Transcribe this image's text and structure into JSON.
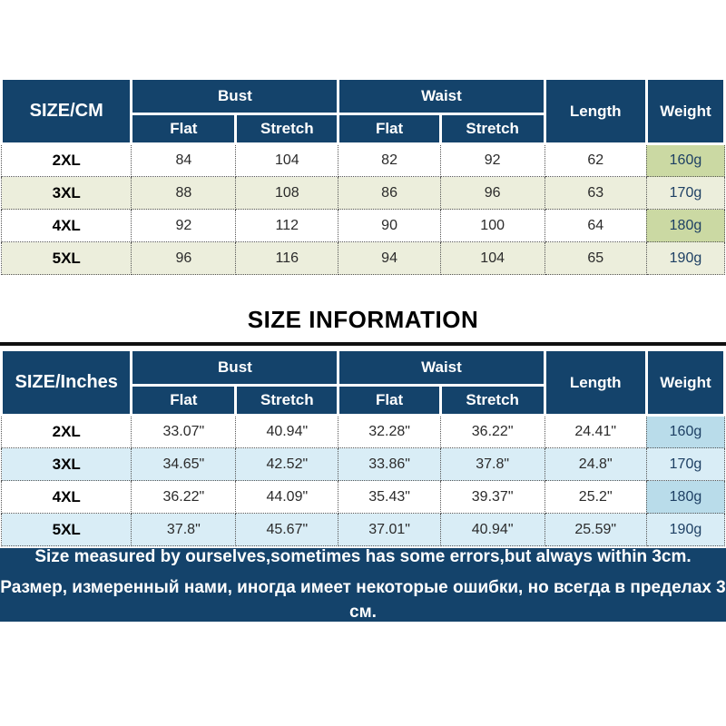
{
  "heading": "SIZE INFORMATION",
  "footer": {
    "line1": "Size measured by ourselves,sometimes has some errors,but always within 3cm.",
    "line2": "Размер, измеренный нами, иногда имеет некоторые ошибки, но всегда в пределах 3 см."
  },
  "colors": {
    "header-bg": "#14436b",
    "footer-bg": "#14436b",
    "cm-alt-row": "#eceedc",
    "cm-weight": "#cbd9a3",
    "in-alt-row": "#d9edf6",
    "in-weight": "#b9dcea",
    "divider": "#101010"
  },
  "chart_data": [
    {
      "type": "table",
      "title": "Size chart in centimeters",
      "corner_label": "SIZE/CM",
      "column_groups": [
        {
          "label": "Bust",
          "span": 2
        },
        {
          "label": "Waist",
          "span": 2
        }
      ],
      "sub_columns": [
        "Flat",
        "Stretch",
        "Flat",
        "Stretch"
      ],
      "single_columns": [
        "Length",
        "Weight"
      ],
      "rows": [
        [
          "2XL",
          "84",
          "104",
          "82",
          "92",
          "62",
          "160g"
        ],
        [
          "3XL",
          "88",
          "108",
          "86",
          "96",
          "63",
          "170g"
        ],
        [
          "4XL",
          "92",
          "112",
          "90",
          "100",
          "64",
          "180g"
        ],
        [
          "5XL",
          "96",
          "116",
          "94",
          "104",
          "65",
          "190g"
        ]
      ]
    },
    {
      "type": "table",
      "title": "Size chart in inches",
      "corner_label": "SIZE/Inches",
      "column_groups": [
        {
          "label": "Bust",
          "span": 2
        },
        {
          "label": "Waist",
          "span": 2
        }
      ],
      "sub_columns": [
        "Flat",
        "Stretch",
        "Flat",
        "Stretch"
      ],
      "single_columns": [
        "Length",
        "Weight"
      ],
      "rows": [
        [
          "2XL",
          "33.07\"",
          "40.94\"",
          "32.28\"",
          "36.22\"",
          "24.41\"",
          "160g"
        ],
        [
          "3XL",
          "34.65\"",
          "42.52\"",
          "33.86\"",
          "37.8\"",
          "24.8\"",
          "170g"
        ],
        [
          "4XL",
          "36.22\"",
          "44.09\"",
          "35.43\"",
          "39.37\"",
          "25.2\"",
          "180g"
        ],
        [
          "5XL",
          "37.8\"",
          "45.67\"",
          "37.01\"",
          "40.94\"",
          "25.59\"",
          "190g"
        ]
      ]
    }
  ]
}
